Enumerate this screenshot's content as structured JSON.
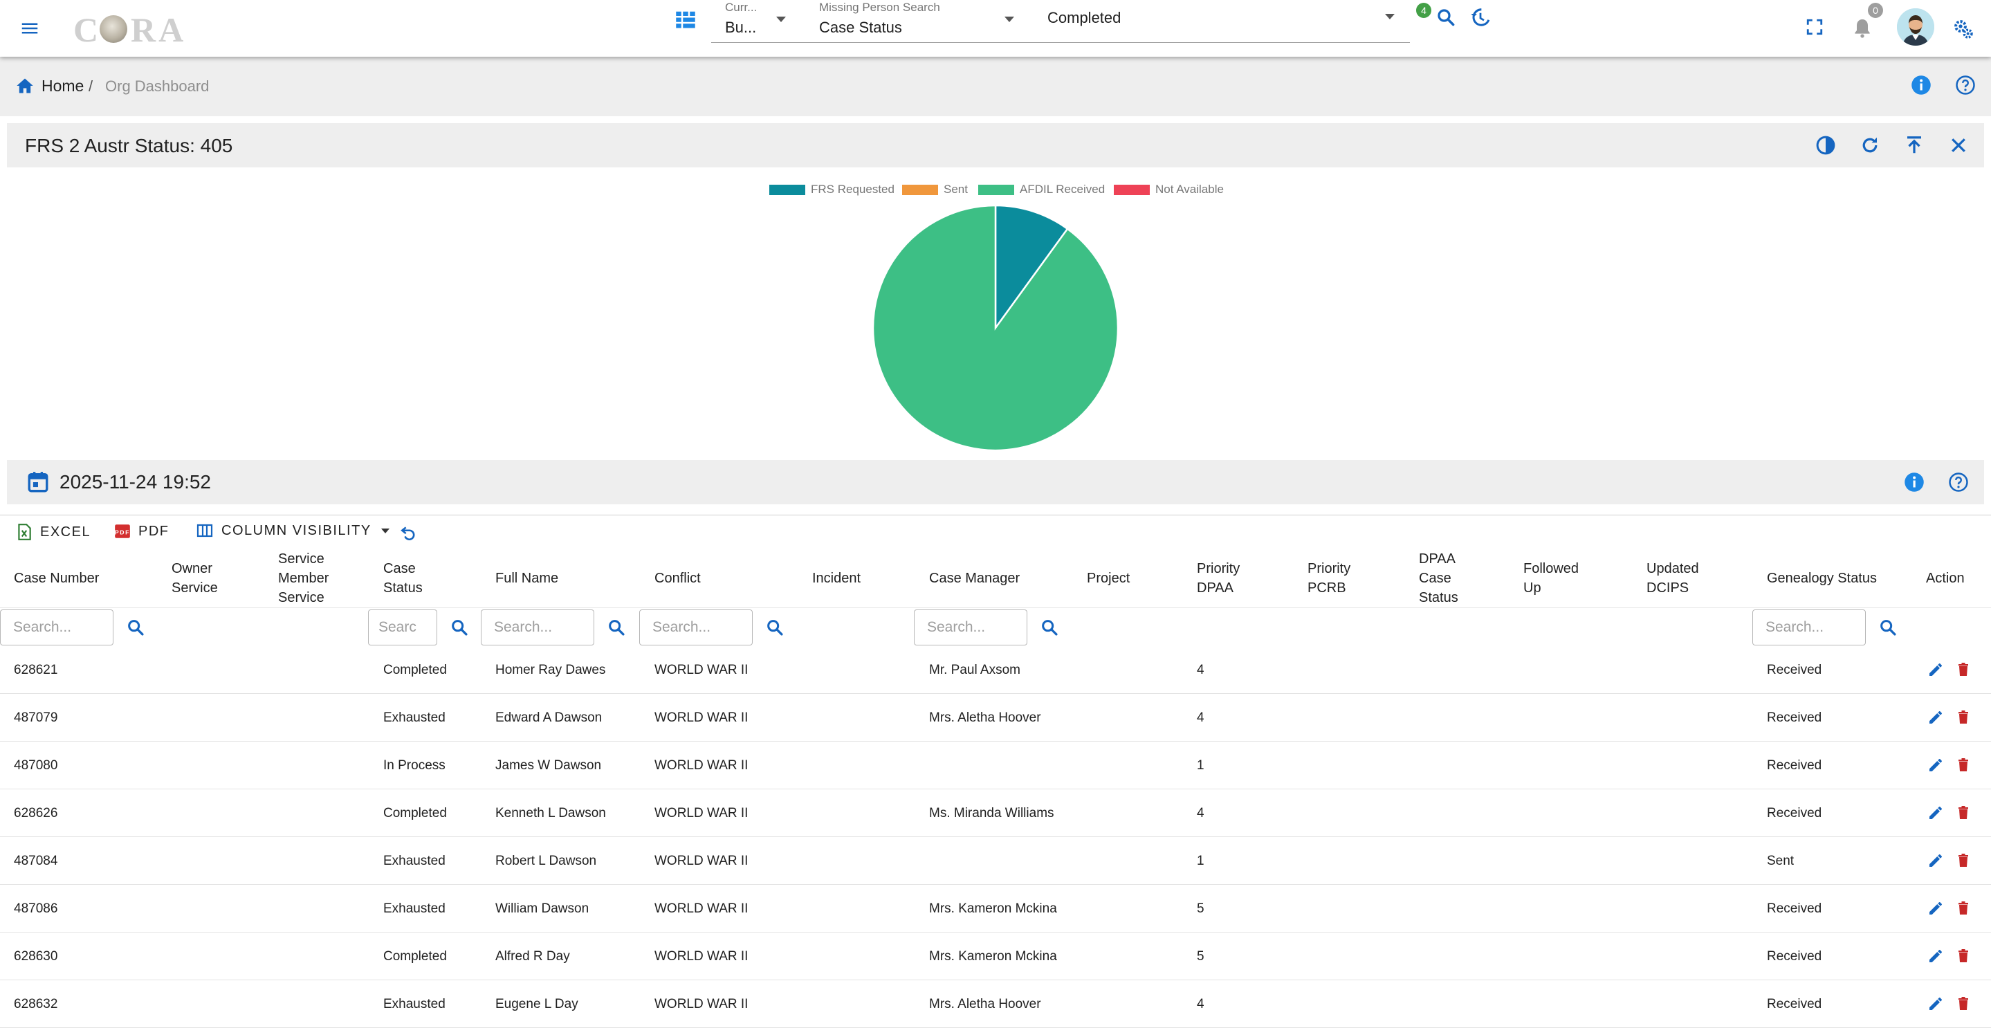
{
  "topbar": {
    "logo_text": "CORA",
    "selector1": {
      "label": "Curr...",
      "value": "Bu..."
    },
    "selector2": {
      "label": "Missing Person Search",
      "value": "Case Status"
    },
    "selector3": {
      "value": "Completed"
    },
    "search_badge": "4",
    "notifications_badge": "0"
  },
  "breadcrumb": {
    "home": "Home",
    "separator": "/",
    "current": "Org Dashboard"
  },
  "chart_panel": {
    "title": "FRS 2 Austr Status: 405"
  },
  "chart_data": {
    "type": "pie",
    "title": "",
    "legend_position": "top",
    "categories": [
      "FRS Requested",
      "Sent",
      "AFDIL Received",
      "Not Available"
    ],
    "values": [
      10,
      0,
      90,
      0
    ],
    "colors": [
      "#0b8c9c",
      "#f0973c",
      "#3dbf85",
      "#ee4256"
    ]
  },
  "table_panel": {
    "date": "2025-11-24 19:52"
  },
  "toolbar": {
    "excel": "EXCEL",
    "pdf": "PDF",
    "column_visibility": "COLUMN VISIBILITY"
  },
  "table": {
    "columns": [
      {
        "key": "case_number",
        "label": "Case Number"
      },
      {
        "key": "owner_service",
        "label": "Owner Service"
      },
      {
        "key": "service_member_service",
        "label": "Service Member Service"
      },
      {
        "key": "case_status",
        "label": "Case Status"
      },
      {
        "key": "full_name",
        "label": "Full Name"
      },
      {
        "key": "conflict",
        "label": "Conflict"
      },
      {
        "key": "incident",
        "label": "Incident"
      },
      {
        "key": "case_manager",
        "label": "Case Manager"
      },
      {
        "key": "project",
        "label": "Project"
      },
      {
        "key": "priority_dpaa",
        "label": "Priority DPAA"
      },
      {
        "key": "priority_pcrb",
        "label": "Priority PCRB"
      },
      {
        "key": "dpaa_case_status",
        "label": "DPAA Case Status"
      },
      {
        "key": "followed_up",
        "label": "Followed Up"
      },
      {
        "key": "updated_dcips",
        "label": "Updated DCIPS"
      },
      {
        "key": "genealogy_status",
        "label": "Genealogy Status"
      },
      {
        "key": "action",
        "label": "Action"
      }
    ],
    "filter_placeholder": "Search...",
    "filter_placeholder_short": "Searc",
    "rows": [
      {
        "case_number": "628621",
        "case_status": "Completed",
        "full_name": "Homer Ray Dawes",
        "conflict": "WORLD WAR II",
        "case_manager": "Mr. Paul Axsom",
        "priority_dpaa": "4",
        "genealogy_status": "Received"
      },
      {
        "case_number": "487079",
        "case_status": "Exhausted",
        "full_name": "Edward A Dawson",
        "conflict": "WORLD WAR II",
        "case_manager": "Mrs. Aletha Hoover",
        "priority_dpaa": "4",
        "genealogy_status": "Received"
      },
      {
        "case_number": "487080",
        "case_status": "In Process",
        "full_name": "James W Dawson",
        "conflict": "WORLD WAR II",
        "case_manager": "",
        "priority_dpaa": "1",
        "genealogy_status": "Received"
      },
      {
        "case_number": "628626",
        "case_status": "Completed",
        "full_name": "Kenneth L Dawson",
        "conflict": "WORLD WAR II",
        "case_manager": "Ms. Miranda Williams",
        "priority_dpaa": "4",
        "genealogy_status": "Received"
      },
      {
        "case_number": "487084",
        "case_status": "Exhausted",
        "full_name": "Robert L Dawson",
        "conflict": "WORLD WAR II",
        "case_manager": "",
        "priority_dpaa": "1",
        "genealogy_status": "Sent"
      },
      {
        "case_number": "487086",
        "case_status": "Exhausted",
        "full_name": "William Dawson",
        "conflict": "WORLD WAR II",
        "case_manager": "Mrs. Kameron Mckina",
        "priority_dpaa": "5",
        "genealogy_status": "Received"
      },
      {
        "case_number": "628630",
        "case_status": "Completed",
        "full_name": "Alfred R Day",
        "conflict": "WORLD WAR II",
        "case_manager": "Mrs. Kameron Mckina",
        "priority_dpaa": "5",
        "genealogy_status": "Received"
      },
      {
        "case_number": "628632",
        "case_status": "Exhausted",
        "full_name": "Eugene L Day",
        "conflict": "WORLD WAR II",
        "case_manager": "Mrs. Aletha Hoover",
        "priority_dpaa": "4",
        "genealogy_status": "Received"
      }
    ]
  },
  "colors": {
    "primary": "#1565c0",
    "accent_blue": "#1e88e5",
    "delete_red": "#c62828",
    "badge_green": "#43a047",
    "badge_grey": "#9e9e9e"
  }
}
